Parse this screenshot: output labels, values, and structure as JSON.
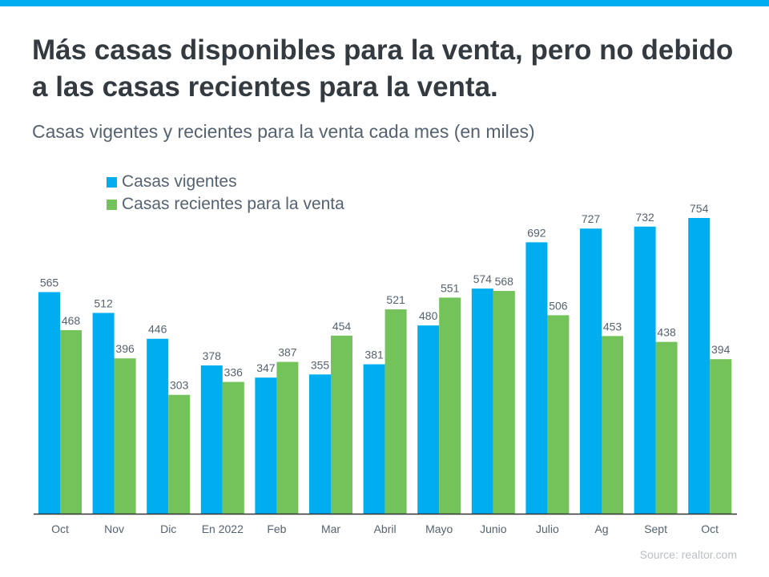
{
  "title": "Más casas disponibles para la venta, pero no debido a las casas recientes para la venta.",
  "subtitle": "Casas vigentes y recientes para la venta cada mes (en miles)",
  "source": "Source: realtor.com",
  "colors": {
    "stripe": "#00aeef",
    "vigentes": "#00aeef",
    "recientes": "#74c35a",
    "text": "#556270"
  },
  "chart_data": {
    "type": "bar",
    "categories": [
      "Oct",
      "Nov",
      "Dic",
      "En 2022",
      "Feb",
      "Mar",
      "Abril",
      "Mayo",
      "Junio",
      "Julio",
      "Ag",
      "Sept",
      "Oct"
    ],
    "series": [
      {
        "name": "Casas vigentes",
        "color": "#00aeef",
        "values": [
          565,
          512,
          446,
          378,
          347,
          355,
          381,
          480,
          574,
          692,
          727,
          732,
          754
        ]
      },
      {
        "name": "Casas recientes para la venta",
        "color": "#74c35a",
        "values": [
          468,
          396,
          303,
          336,
          387,
          454,
          521,
          551,
          568,
          506,
          453,
          438,
          394
        ]
      }
    ],
    "ylim": [
      0,
      754
    ],
    "grid": false,
    "legend": "top-left",
    "data_labels": true
  }
}
